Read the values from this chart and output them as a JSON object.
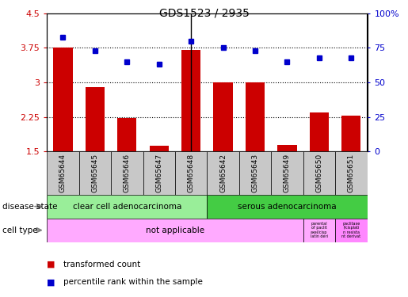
{
  "title": "GDS1523 / 2935",
  "samples": [
    "GSM65644",
    "GSM65645",
    "GSM65646",
    "GSM65647",
    "GSM65648",
    "GSM65642",
    "GSM65643",
    "GSM65649",
    "GSM65650",
    "GSM65651"
  ],
  "bar_values": [
    3.75,
    2.9,
    2.22,
    1.63,
    3.7,
    3.0,
    3.0,
    1.65,
    2.35,
    2.27
  ],
  "dot_values": [
    83,
    73,
    65,
    63,
    80,
    75,
    73,
    65,
    68,
    68
  ],
  "bar_color": "#cc0000",
  "dot_color": "#0000cc",
  "ylim_left": [
    1.5,
    4.5
  ],
  "ylim_right": [
    0,
    100
  ],
  "yticks_left": [
    1.5,
    2.25,
    3.0,
    3.75,
    4.5
  ],
  "yticks_right": [
    0,
    25,
    50,
    75,
    100
  ],
  "ytick_labels_left": [
    "1.5",
    "2.25",
    "3",
    "3.75",
    "4.5"
  ],
  "ytick_labels_right": [
    "0",
    "25",
    "50",
    "75",
    "100%"
  ],
  "hlines": [
    2.25,
    3.0,
    3.75
  ],
  "disease_state_groups": [
    {
      "label": "clear cell adenocarcinoma",
      "start": 0,
      "end": 5,
      "color": "#99ee99"
    },
    {
      "label": "serous adenocarcinoma",
      "start": 5,
      "end": 10,
      "color": "#44cc44"
    }
  ],
  "cell_type_main_label": "not applicable",
  "cell_type_main_color": "#ffaaff",
  "cell_type_extra_colors": [
    "#ffaaff",
    "#ff88ff"
  ],
  "cell_type_extra_labels": [
    "parental\nof paclit\naxel/cisp\nlatin deri",
    "paclitaxe\nl/cisplati\nn resista\nnt derivat"
  ],
  "bar_width": 0.6,
  "separator_after_idx": 4,
  "left_ytick_color": "#cc0000",
  "right_ytick_color": "#0000cc",
  "gray_box_color": "#c8c8c8",
  "legend_bar_label": "transformed count",
  "legend_dot_label": "percentile rank within the sample",
  "disease_state_label": "disease state",
  "cell_type_label": "cell type"
}
